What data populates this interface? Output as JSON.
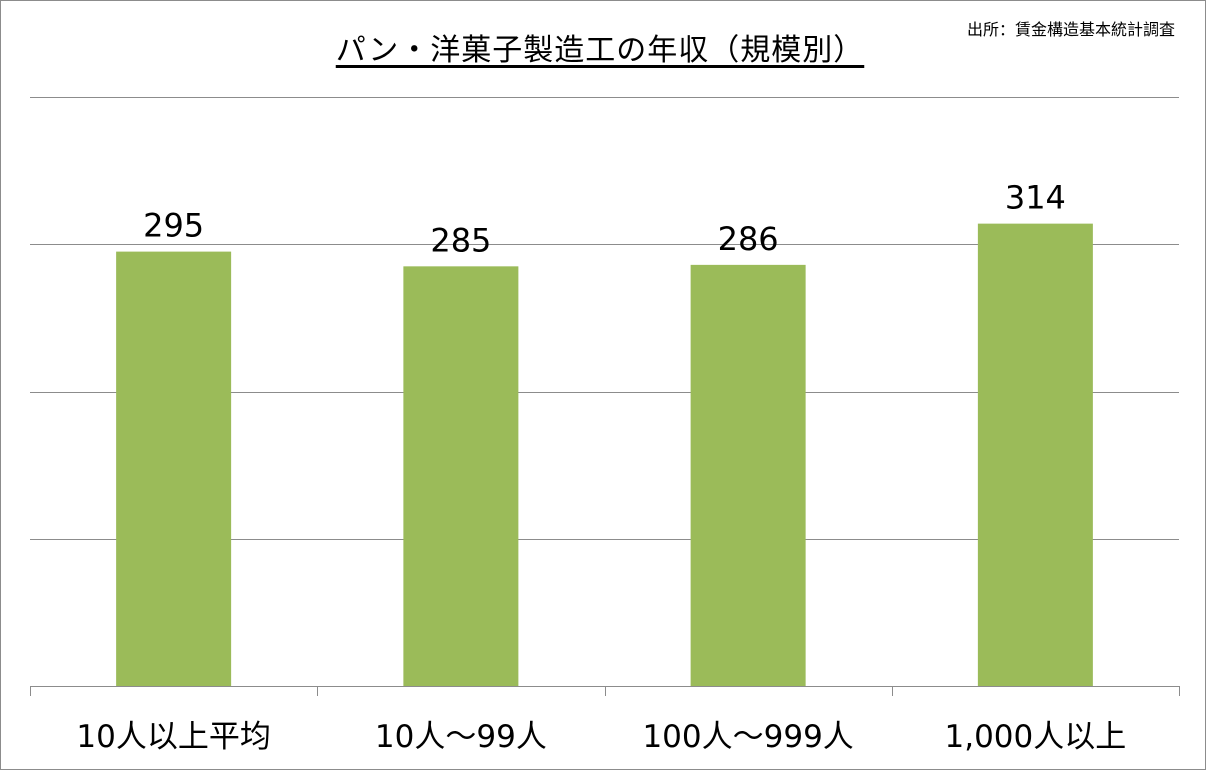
{
  "chart_data": {
    "type": "bar",
    "title": "パン・洋菓子製造工の年収（規模別）",
    "source": "出所：賃金構造基本統計調査",
    "categories": [
      "10人以上平均",
      "10人～99人",
      "100人～999人",
      "1,000人以上"
    ],
    "values": [
      295,
      285,
      286,
      314
    ],
    "data_labels": [
      "295",
      "285",
      "286",
      "314"
    ],
    "ylim": [
      0,
      400
    ],
    "gridlines": [
      0,
      100,
      200,
      300,
      400
    ],
    "y_tick_labels_shown": false,
    "grid": true,
    "bar_color": "#9bbb59",
    "grid_color": "#8c8c8c",
    "xlabel": "",
    "ylabel": ""
  }
}
